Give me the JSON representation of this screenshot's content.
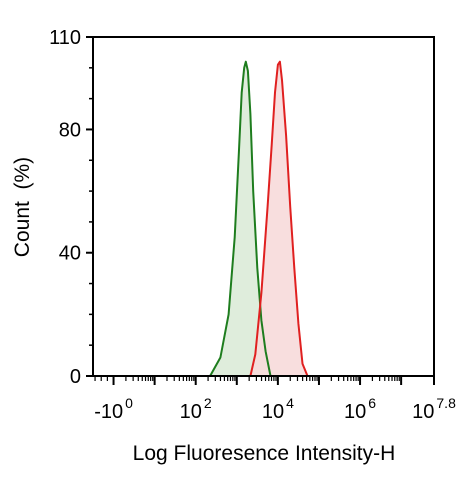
{
  "chart_data": {
    "type": "area",
    "title": "",
    "xlabel": "Log Fluoresence Intensity-H",
    "ylabel": "Count  (%)",
    "x_scale": "log",
    "xlim_log10": [
      -0.5,
      7.8
    ],
    "ylim": [
      0,
      110
    ],
    "y_ticks": [
      0,
      40,
      80,
      110
    ],
    "y_tick_labels": [
      "0",
      "40",
      "80",
      "110"
    ],
    "x_tick_labels": [
      {
        "log10": 0,
        "base": "-10",
        "exp": "0"
      },
      {
        "log10": 2,
        "base": "10",
        "exp": "2"
      },
      {
        "log10": 4,
        "base": "10",
        "exp": "4"
      },
      {
        "log10": 6,
        "base": "10",
        "exp": "6"
      },
      {
        "log10": 7.8,
        "base": "10",
        "exp": "7.8"
      }
    ],
    "grid": false,
    "legend": "none",
    "series": [
      {
        "color": "#1e7d1e",
        "fill": "#dcebd8",
        "points": [
          [
            2.35,
            0
          ],
          [
            2.6,
            6
          ],
          [
            2.8,
            20
          ],
          [
            2.95,
            45
          ],
          [
            3.05,
            72
          ],
          [
            3.12,
            92
          ],
          [
            3.18,
            100
          ],
          [
            3.22,
            102
          ],
          [
            3.27,
            99
          ],
          [
            3.33,
            85
          ],
          [
            3.4,
            60
          ],
          [
            3.5,
            35
          ],
          [
            3.6,
            18
          ],
          [
            3.7,
            8
          ],
          [
            3.82,
            0
          ]
        ]
      },
      {
        "color": "#e02020",
        "fill": "#f7dada",
        "points": [
          [
            3.33,
            0
          ],
          [
            3.45,
            7
          ],
          [
            3.6,
            27
          ],
          [
            3.75,
            55
          ],
          [
            3.85,
            75
          ],
          [
            3.93,
            92
          ],
          [
            4.0,
            101
          ],
          [
            4.05,
            102
          ],
          [
            4.1,
            96
          ],
          [
            4.2,
            78
          ],
          [
            4.3,
            55
          ],
          [
            4.4,
            35
          ],
          [
            4.5,
            17
          ],
          [
            4.6,
            4
          ],
          [
            4.72,
            0
          ]
        ]
      }
    ]
  }
}
